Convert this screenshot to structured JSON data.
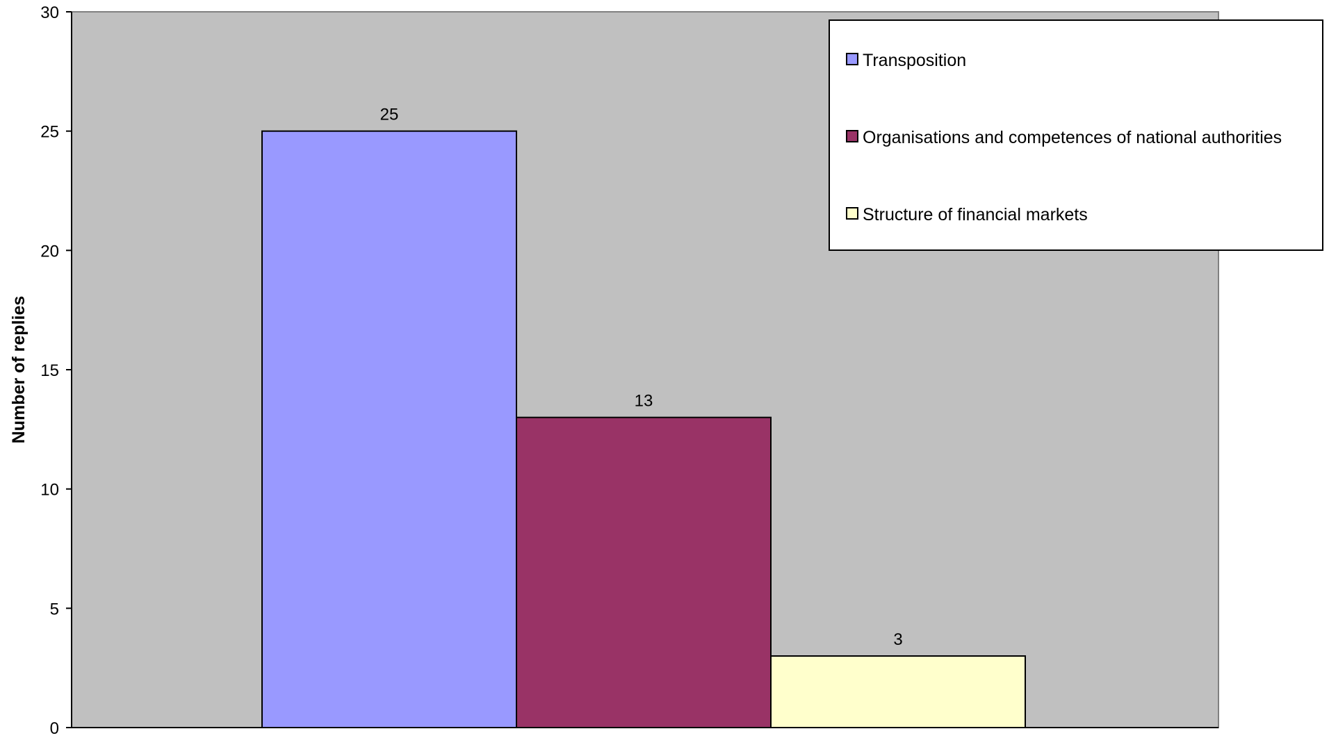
{
  "chart_data": {
    "type": "bar",
    "title": "",
    "xlabel": "",
    "ylabel": "Number of replies",
    "ylim": [
      0,
      30
    ],
    "yticks": [
      0,
      5,
      10,
      15,
      20,
      25,
      30
    ],
    "grid": false,
    "legend_position": "top-right",
    "plot_background": "#c0c0c0",
    "series": [
      {
        "name": "Transposition",
        "value": 25,
        "color": "#9999ff"
      },
      {
        "name": "Organisations and competences of national authorities",
        "value": 13,
        "color": "#993366"
      },
      {
        "name": "Structure of financial markets",
        "value": 3,
        "color": "#ffffcc"
      }
    ]
  }
}
